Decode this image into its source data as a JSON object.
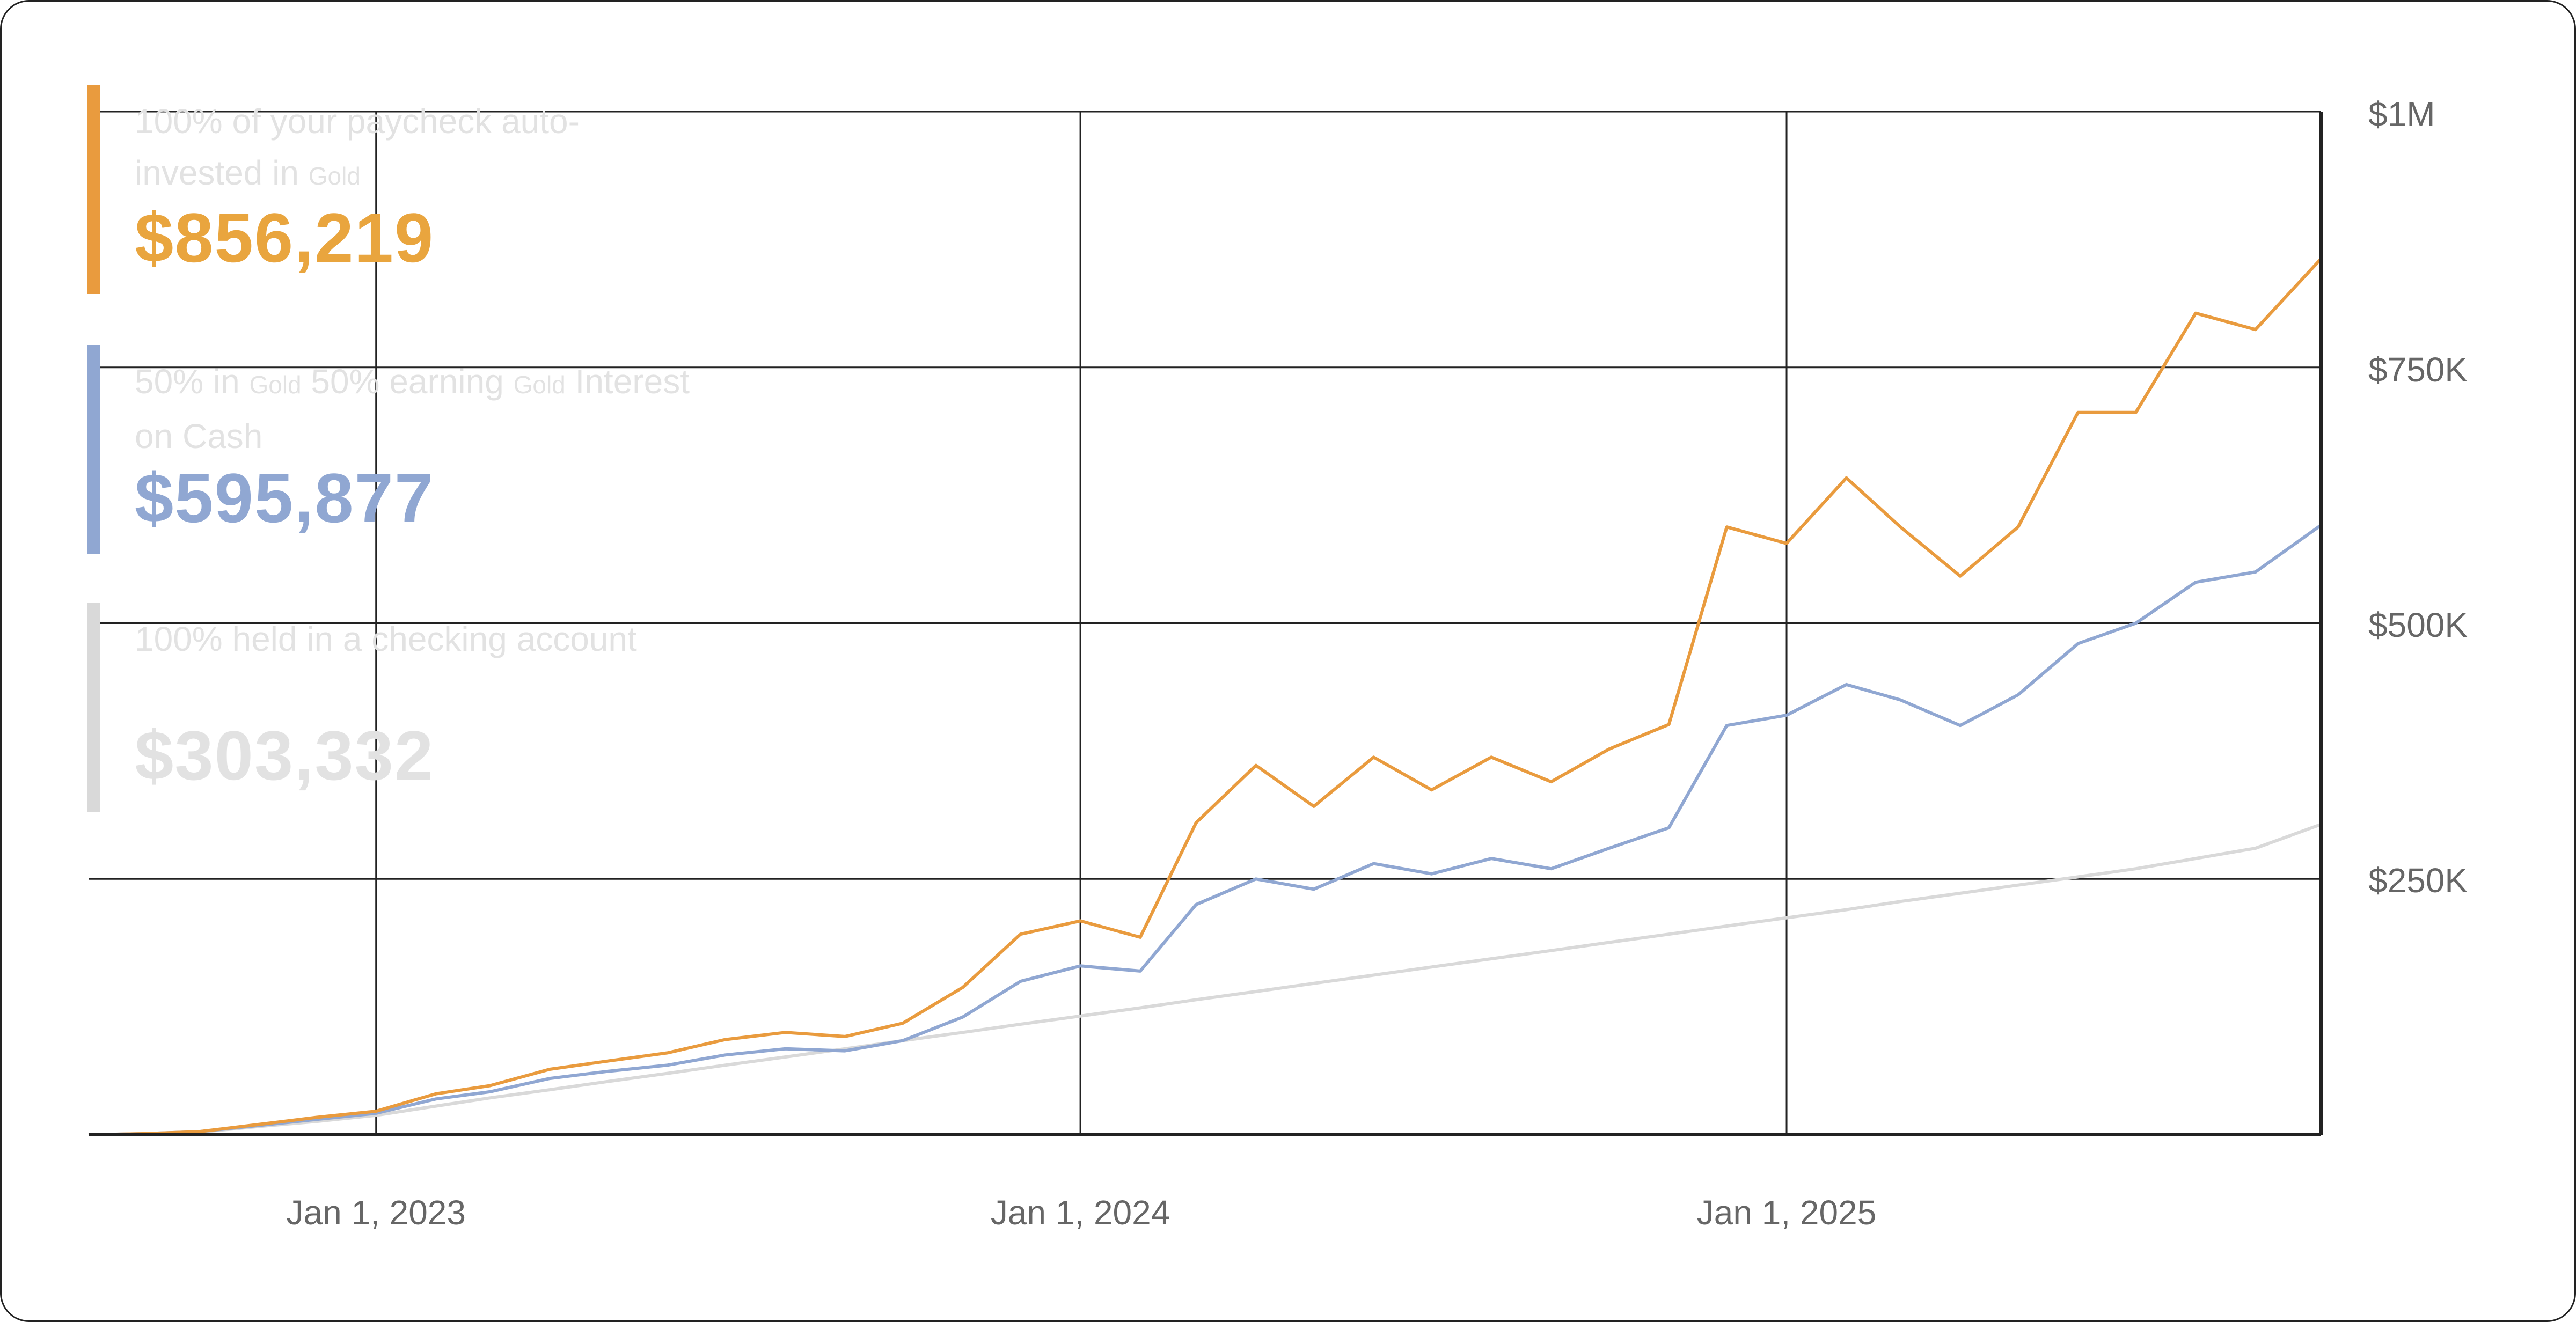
{
  "chart_data": {
    "type": "line",
    "title": "",
    "xlabel": "",
    "ylabel": "",
    "xlim": [
      "2022-08-05",
      "2025-10-05"
    ],
    "ylim": [
      0,
      1000000
    ],
    "grid": true,
    "x_ticks": [
      {
        "date": "2023-01-01",
        "label": "Jan 1, 2023"
      },
      {
        "date": "2024-01-01",
        "label": "Jan 1, 2024"
      },
      {
        "date": "2025-01-01",
        "label": "Jan 1, 2025"
      }
    ],
    "y_ticks": [
      {
        "value": 1000000,
        "label": "$1M"
      },
      {
        "value": 750000,
        "label": "$750K"
      },
      {
        "value": 500000,
        "label": "$500K"
      },
      {
        "value": 250000,
        "label": "$250K"
      }
    ],
    "legend_placement": "top-left",
    "x": [
      "2022-08-05",
      "2022-09-01",
      "2022-10-01",
      "2022-11-01",
      "2022-12-01",
      "2023-01-01",
      "2023-02-01",
      "2023-03-01",
      "2023-04-01",
      "2023-05-01",
      "2023-06-01",
      "2023-07-01",
      "2023-08-01",
      "2023-09-01",
      "2023-10-01",
      "2023-11-01",
      "2023-12-01",
      "2024-01-01",
      "2024-02-01",
      "2024-03-01",
      "2024-04-01",
      "2024-05-01",
      "2024-06-01",
      "2024-07-01",
      "2024-08-01",
      "2024-09-01",
      "2024-10-01",
      "2024-11-01",
      "2024-12-01",
      "2025-01-01",
      "2025-02-01",
      "2025-03-01",
      "2025-04-01",
      "2025-05-01",
      "2025-06-01",
      "2025-07-01",
      "2025-08-01",
      "2025-09-01",
      "2025-10-05"
    ],
    "series": [
      {
        "name": "100% of your paycheck auto-invested in Gold",
        "color": "#e99b3e",
        "values": [
          0,
          1000,
          3000,
          10000,
          17000,
          23000,
          40000,
          48000,
          64000,
          72000,
          80000,
          93000,
          100000,
          96000,
          109000,
          144000,
          196000,
          209000,
          193000,
          305000,
          361000,
          321000,
          369000,
          337000,
          369000,
          345000,
          377000,
          401000,
          594000,
          578000,
          642000,
          594000,
          546000,
          594000,
          706000,
          706000,
          803000,
          787000,
          856219
        ]
      },
      {
        "name": "50% in Gold 50% earning Gold Interest on Cash",
        "color": "#90a7d2",
        "values": [
          0,
          1000,
          3000,
          9000,
          15000,
          21000,
          35000,
          42000,
          55000,
          62000,
          68000,
          78000,
          84000,
          82000,
          92000,
          115000,
          150000,
          165000,
          160000,
          225000,
          250000,
          240000,
          265000,
          255000,
          270000,
          260000,
          280000,
          300000,
          400000,
          410000,
          440000,
          425000,
          400000,
          430000,
          480000,
          500000,
          540000,
          550000,
          595877
        ]
      },
      {
        "name": "100% held in a checking account",
        "color": "#d9d9d9",
        "values": [
          0,
          1000,
          2500,
          8000,
          13000,
          19000,
          28000,
          36000,
          44000,
          52000,
          60000,
          68000,
          76000,
          84000,
          92000,
          100000,
          108000,
          116000,
          124000,
          132000,
          140000,
          148000,
          156000,
          164000,
          172000,
          180000,
          188000,
          196000,
          204000,
          212000,
          220000,
          228000,
          236000,
          244000,
          252000,
          260000,
          270000,
          280000,
          303332
        ]
      }
    ]
  },
  "legend": [
    {
      "parts": [
        {
          "t": "100% of your paycheck auto-invested in "
        },
        {
          "t": "Gold",
          "sm": true
        }
      ],
      "value": "$856,219",
      "color": "#e99b3e",
      "value_color": "#e9a53e"
    },
    {
      "parts": [
        {
          "t": "50% in "
        },
        {
          "t": "Gold",
          "sm": true
        },
        {
          "t": " 50% earning "
        },
        {
          "t": "Gold",
          "sm": true
        },
        {
          "t": " Interest on Cash"
        }
      ],
      "value": "$595,877",
      "color": "#90a7d2",
      "value_color": "#90a7d2"
    },
    {
      "parts": [
        {
          "t": "100% held in a checking account"
        }
      ],
      "value": "$303,332",
      "color": "#d9d9d9",
      "value_color": "#e2e2e2"
    }
  ]
}
